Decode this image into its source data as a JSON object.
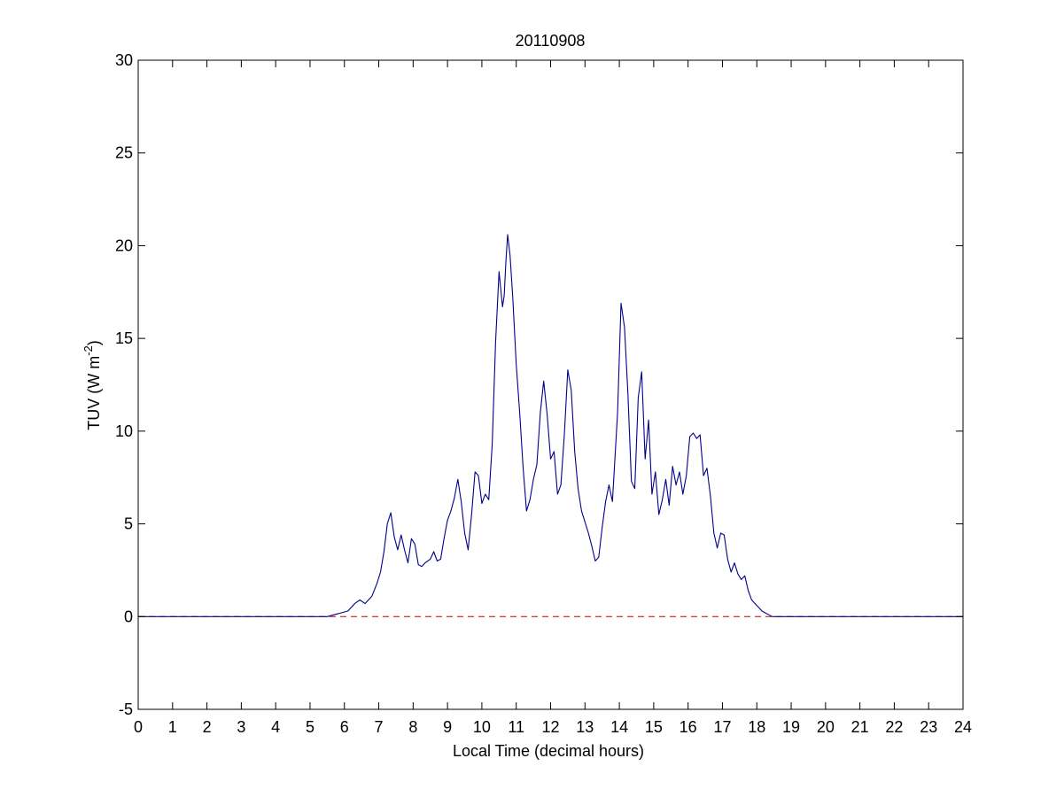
{
  "chart_data": {
    "type": "line",
    "title": "20110908",
    "xlabel": "Local Time (decimal hours)",
    "ylabel": "TUV (W m",
    "ylabel_superscript": "-2",
    "ylabel_suffix": ")",
    "xlim": [
      0,
      24
    ],
    "ylim": [
      -5,
      30
    ],
    "xticks": [
      0,
      1,
      2,
      3,
      4,
      5,
      6,
      7,
      8,
      9,
      10,
      11,
      12,
      13,
      14,
      15,
      16,
      17,
      18,
      19,
      20,
      21,
      22,
      23,
      24
    ],
    "yticks": [
      -5,
      0,
      5,
      10,
      15,
      20,
      25,
      30
    ],
    "grid": false,
    "legend": "none",
    "colors": {
      "series": "#00008b",
      "zero_line": "#cc0000",
      "axes": "#000000"
    },
    "reference_line": {
      "y": 0,
      "style": "dashed"
    },
    "series": [
      {
        "x": [
          0,
          5.5,
          5.7,
          5.9,
          6.1,
          6.3,
          6.45,
          6.6,
          6.8,
          6.95,
          7.05,
          7.15,
          7.25,
          7.35,
          7.45,
          7.55,
          7.65,
          7.75,
          7.85,
          7.95,
          8.05,
          8.15,
          8.25,
          8.35,
          8.5,
          8.6,
          8.7,
          8.8,
          8.9,
          9.0,
          9.1,
          9.2,
          9.3,
          9.4,
          9.5,
          9.6,
          9.7,
          9.8,
          9.9,
          10.0,
          10.1,
          10.2,
          10.3,
          10.4,
          10.5,
          10.6,
          10.65,
          10.7,
          10.75,
          10.82,
          10.9,
          11.0,
          11.1,
          11.2,
          11.3,
          11.4,
          11.5,
          11.6,
          11.7,
          11.8,
          11.9,
          12.0,
          12.1,
          12.2,
          12.3,
          12.4,
          12.5,
          12.6,
          12.7,
          12.8,
          12.9,
          13.0,
          13.1,
          13.2,
          13.3,
          13.4,
          13.5,
          13.6,
          13.7,
          13.8,
          13.95,
          14.05,
          14.15,
          14.25,
          14.35,
          14.45,
          14.55,
          14.65,
          14.75,
          14.85,
          14.95,
          15.05,
          15.15,
          15.25,
          15.35,
          15.45,
          15.55,
          15.65,
          15.75,
          15.85,
          15.95,
          16.05,
          16.15,
          16.25,
          16.35,
          16.45,
          16.55,
          16.65,
          16.75,
          16.85,
          16.95,
          17.05,
          17.15,
          17.25,
          17.35,
          17.45,
          17.55,
          17.65,
          17.75,
          17.85,
          17.95,
          18.05,
          18.15,
          18.25,
          18.35,
          18.45,
          18.55,
          18.65,
          24
        ],
        "y": [
          0,
          0,
          0.1,
          0.2,
          0.3,
          0.7,
          0.9,
          0.7,
          1.1,
          1.8,
          2.4,
          3.5,
          5.0,
          5.6,
          4.3,
          3.6,
          4.4,
          3.6,
          2.9,
          4.2,
          3.9,
          2.8,
          2.7,
          2.9,
          3.1,
          3.5,
          3.0,
          3.1,
          4.2,
          5.2,
          5.7,
          6.4,
          7.4,
          6.2,
          4.5,
          3.6,
          5.5,
          7.8,
          7.6,
          6.1,
          6.6,
          6.3,
          9.3,
          14.8,
          18.6,
          16.7,
          17.3,
          19.2,
          20.6,
          19.5,
          17.2,
          13.6,
          11.0,
          8.0,
          5.7,
          6.3,
          7.4,
          8.2,
          11.0,
          12.7,
          10.9,
          8.5,
          8.9,
          6.6,
          7.1,
          9.8,
          13.3,
          12.2,
          8.9,
          6.9,
          5.7,
          5.1,
          4.5,
          3.8,
          3.0,
          3.2,
          4.8,
          6.2,
          7.1,
          6.2,
          11.0,
          16.9,
          15.6,
          12.0,
          7.3,
          6.9,
          11.8,
          13.2,
          8.5,
          10.6,
          6.6,
          7.8,
          5.5,
          6.3,
          7.4,
          6.0,
          8.1,
          7.1,
          7.8,
          6.6,
          7.6,
          9.7,
          9.9,
          9.6,
          9.8,
          7.6,
          8.0,
          6.5,
          4.5,
          3.7,
          4.5,
          4.4,
          3.1,
          2.4,
          2.9,
          2.3,
          2.0,
          2.2,
          1.4,
          0.9,
          0.7,
          0.5,
          0.3,
          0.2,
          0.1,
          0,
          0,
          0,
          0
        ]
      }
    ]
  }
}
